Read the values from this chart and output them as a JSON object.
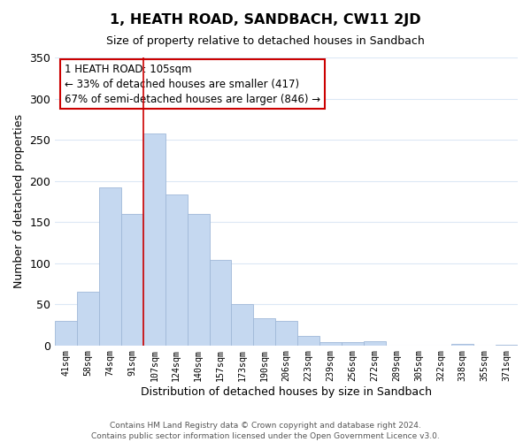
{
  "title": "1, HEATH ROAD, SANDBACH, CW11 2JD",
  "subtitle": "Size of property relative to detached houses in Sandbach",
  "xlabel": "Distribution of detached houses by size in Sandbach",
  "ylabel": "Number of detached properties",
  "bar_labels": [
    "41sqm",
    "58sqm",
    "74sqm",
    "91sqm",
    "107sqm",
    "124sqm",
    "140sqm",
    "157sqm",
    "173sqm",
    "190sqm",
    "206sqm",
    "223sqm",
    "239sqm",
    "256sqm",
    "272sqm",
    "289sqm",
    "305sqm",
    "322sqm",
    "338sqm",
    "355sqm",
    "371sqm"
  ],
  "bar_values": [
    30,
    65,
    192,
    160,
    258,
    183,
    160,
    104,
    50,
    33,
    30,
    11,
    4,
    4,
    5,
    0,
    0,
    0,
    2,
    0,
    1
  ],
  "bar_color": "#c5d8f0",
  "bar_edge_color": "#a0b8d8",
  "highlight_index": 4,
  "highlight_line_color": "#cc0000",
  "annotation_title": "1 HEATH ROAD: 105sqm",
  "annotation_line1": "← 33% of detached houses are smaller (417)",
  "annotation_line2": "67% of semi-detached houses are larger (846) →",
  "annotation_box_color": "#ffffff",
  "annotation_box_edge_color": "#cc0000",
  "ylim": [
    0,
    350
  ],
  "yticks": [
    0,
    50,
    100,
    150,
    200,
    250,
    300,
    350
  ],
  "footer_line1": "Contains HM Land Registry data © Crown copyright and database right 2024.",
  "footer_line2": "Contains public sector information licensed under the Open Government Licence v3.0.",
  "background_color": "#ffffff",
  "grid_color": "#dce8f5"
}
